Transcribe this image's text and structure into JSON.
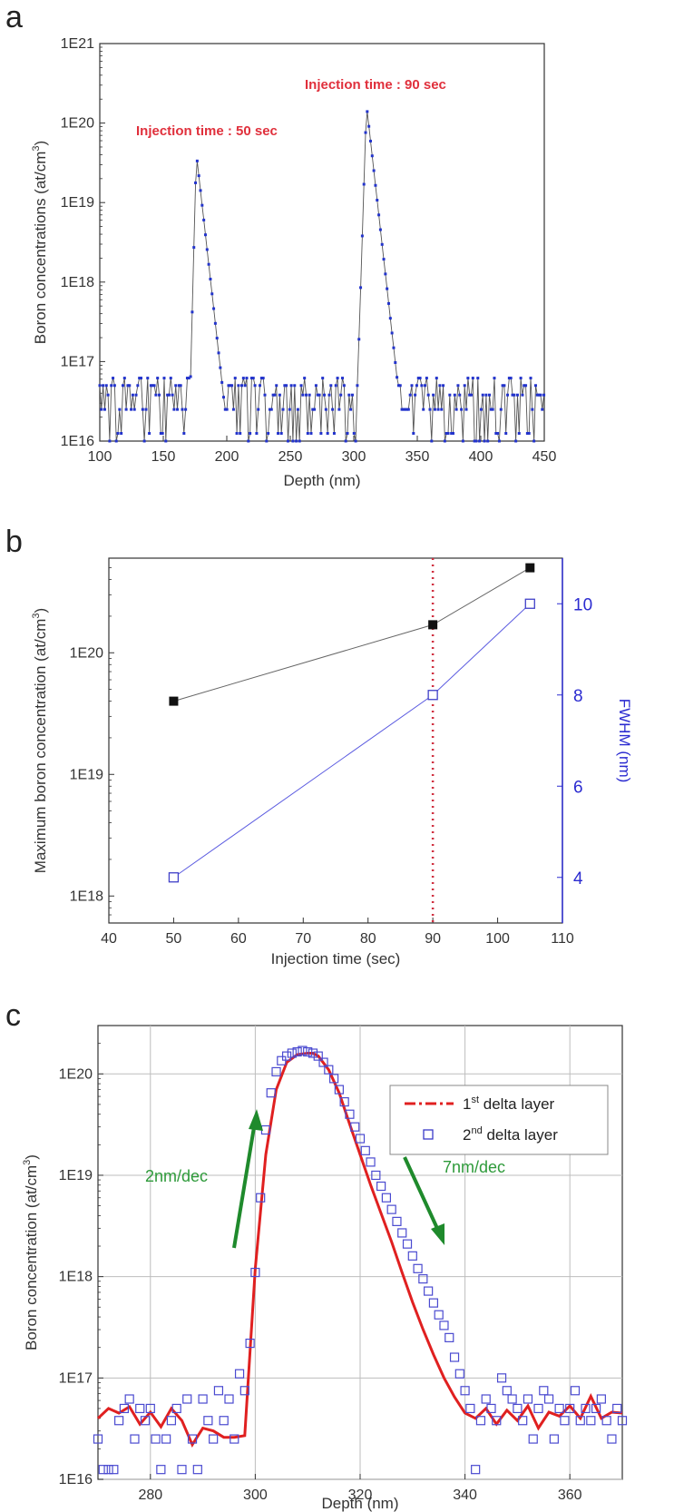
{
  "chart_data": [
    {
      "panel": "a",
      "type": "line",
      "xlabel": "Depth (nm)",
      "ylabel": "Boron concentrations (at/cm",
      "ylabel_sup": "3",
      "ylabel_tail": ")",
      "xlim": [
        100,
        450
      ],
      "ylim": [
        1e+16,
        1e+21
      ],
      "yscale": "log",
      "xticks": [
        100,
        150,
        200,
        250,
        300,
        350,
        400,
        450
      ],
      "yticks": [
        {
          "value": 1e+16,
          "label": "1E16"
        },
        {
          "value": 1e+17,
          "label": "1E17"
        },
        {
          "value": 1e+18,
          "label": "1E18"
        },
        {
          "value": 1e+19,
          "label": "1E19"
        },
        {
          "value": 1e+20,
          "label": "1E20"
        },
        {
          "value": 1e+21,
          "label": "1E21"
        }
      ],
      "annotations": [
        {
          "text": "Injection time : 50 sec",
          "x": 176,
          "y": 1e+20
        },
        {
          "text": "Injection time : 90 sec",
          "x": 310,
          "y": 2.9e+20
        }
      ],
      "series": [
        {
          "peaks": [
            {
              "center": 176,
              "peak": 4.2e+19,
              "rise_nm_per_dec": 1.6,
              "fall_nm_per_dec": 7.0
            },
            {
              "center": 310,
              "peak": 1.7e+20,
              "rise_nm_per_dec": 2.0,
              "fall_nm_per_dec": 7.0
            }
          ],
          "background": [
            2.5e+16,
            3.8e+16,
            5e+16,
            6.2e+16,
            1.25e+16
          ],
          "step_nm": 1.3
        }
      ]
    },
    {
      "panel": "b",
      "type": "scatter",
      "xlabel": "Injection time (sec)",
      "ylabel": "Maximum boron concentration (at/cm",
      "ylabel_sup": "3",
      "ylabel_tail": ")",
      "y2label": "FWHM (nm)",
      "xlim": [
        40,
        110
      ],
      "ylim": [
        6e+17,
        6e+20
      ],
      "yscale": "log",
      "y2lim": [
        3,
        11
      ],
      "xticks": [
        40,
        50,
        60,
        70,
        80,
        90,
        100,
        110
      ],
      "yticks": [
        {
          "value": 1e+18,
          "label": "1E18"
        },
        {
          "value": 1e+19,
          "label": "1E19"
        },
        {
          "value": 1e+20,
          "label": "1E20"
        }
      ],
      "y2ticks": [
        4,
        6,
        8,
        10
      ],
      "vline": 90,
      "series": [
        {
          "axis": "left",
          "marker": "filled-square",
          "x": [
            50,
            90,
            105
          ],
          "y": [
            4e+19,
            1.7e+20,
            5e+20
          ]
        },
        {
          "axis": "right",
          "marker": "open-square",
          "x": [
            50,
            90,
            105
          ],
          "y": [
            4,
            8,
            10
          ]
        }
      ]
    },
    {
      "panel": "c",
      "type": "line",
      "xlabel": "Depth (nm)",
      "ylabel": "Boron concentration (at/cm",
      "ylabel_sup": "3",
      "ylabel_tail": ")",
      "xlim": [
        270,
        370
      ],
      "ylim": [
        1e+16,
        3e+20
      ],
      "yscale": "log",
      "grid": true,
      "xticks": [
        280,
        300,
        320,
        340,
        360
      ],
      "yticks": [
        {
          "value": 1e+16,
          "label": "1E16"
        },
        {
          "value": 1e+17,
          "label": "1E17"
        },
        {
          "value": 1e+18,
          "label": "1E18"
        },
        {
          "value": 1e+19,
          "label": "1E19"
        },
        {
          "value": 1e+20,
          "label": "1E20"
        }
      ],
      "annotations": [
        {
          "text": "2nm/dec",
          "x": 288,
          "y": 3e+18
        },
        {
          "text": "7nm/dec",
          "x": 346,
          "y": 2.6e+18
        }
      ],
      "legend": {
        "position": "top-right",
        "entries": [
          {
            "label_a": "1",
            "sup": "st",
            "label_b": " delta layer",
            "style": "red-dash-dot-line"
          },
          {
            "label_a": "2",
            "sup": "nd",
            "label_b": " delta layer",
            "style": "blue-open-square"
          }
        ]
      },
      "series": [
        {
          "name": "1st delta layer",
          "x": [
            270,
            272,
            274,
            276,
            278,
            280,
            282,
            284,
            286,
            288,
            290,
            292,
            294,
            296,
            298,
            300,
            302,
            304,
            306,
            308,
            310,
            311,
            312,
            314,
            316,
            318,
            320,
            322,
            324,
            326,
            328,
            330,
            332,
            334,
            336,
            338,
            340,
            342,
            344,
            346,
            348,
            350,
            352,
            354,
            356,
            358,
            360,
            362,
            364,
            366,
            368,
            370
          ],
          "y": [
            4e+16,
            5e+16,
            4.5e+16,
            5.2e+16,
            3.5e+16,
            4.6e+16,
            3.3e+16,
            5e+16,
            3.8e+16,
            2.2e+16,
            3.2e+16,
            3e+16,
            2.6e+16,
            2.6e+16,
            2.7e+16,
            1.2e+18,
            1.6e+19,
            7e+19,
            1.3e+20,
            1.55e+20,
            1.6e+20,
            1.6e+20,
            1.5e+20,
            1.1e+20,
            6.5e+19,
            3.2e+19,
            1.6e+19,
            8e+18,
            4.2e+18,
            2.2e+18,
            1.1e+18,
            5.6e+17,
            3e+17,
            1.7e+17,
            1e+17,
            6.5e+16,
            4.5e+16,
            4e+16,
            5e+16,
            3.5e+16,
            4.8e+16,
            3.8e+16,
            5.3e+16,
            3.2e+16,
            4.6e+16,
            4.2e+16,
            5.3e+16,
            4e+16,
            6.6e+16,
            4e+16,
            4.6e+16,
            4.5e+16
          ]
        },
        {
          "name": "2nd delta layer",
          "x": [
            270,
            271,
            272,
            273,
            274,
            275,
            276,
            277,
            278,
            279,
            280,
            281,
            282,
            283,
            284,
            285,
            286,
            287,
            288,
            289,
            290,
            291,
            292,
            293,
            294,
            295,
            296,
            297,
            298,
            299,
            300,
            301,
            302,
            303,
            304,
            305,
            306,
            307,
            308,
            309,
            310,
            311,
            312,
            313,
            314,
            315,
            316,
            317,
            318,
            319,
            320,
            321,
            322,
            323,
            324,
            325,
            326,
            327,
            328,
            329,
            330,
            331,
            332,
            333,
            334,
            335,
            336,
            337,
            338,
            339,
            340,
            341,
            342,
            343,
            344,
            345,
            346,
            347,
            348,
            349,
            350,
            351,
            352,
            353,
            354,
            355,
            356,
            357,
            358,
            359,
            360,
            361,
            362,
            363,
            364,
            365,
            366,
            367,
            368,
            369,
            370
          ],
          "y": [
            2.5e+16,
            1.25e+16,
            1.25e+16,
            1.25e+16,
            3.8e+16,
            5e+16,
            6.2e+16,
            2.5e+16,
            5e+16,
            3.8e+16,
            5e+16,
            2.5e+16,
            1.25e+16,
            2.5e+16,
            3.8e+16,
            5e+16,
            1.25e+16,
            6.2e+16,
            2.5e+16,
            1.25e+16,
            6.2e+16,
            3.8e+16,
            2.5e+16,
            7.5e+16,
            3.8e+16,
            6.2e+16,
            2.5e+16,
            1.1e+17,
            7.5e+16,
            2.2e+17,
            1.1e+18,
            6e+18,
            2.8e+19,
            6.5e+19,
            1.05e+20,
            1.35e+20,
            1.5e+20,
            1.6e+20,
            1.65e+20,
            1.7e+20,
            1.65e+20,
            1.6e+20,
            1.5e+20,
            1.3e+20,
            1.1e+20,
            9e+19,
            7e+19,
            5.3e+19,
            4e+19,
            3e+19,
            2.3e+19,
            1.75e+19,
            1.35e+19,
            1e+19,
            7.8e+18,
            6e+18,
            4.6e+18,
            3.5e+18,
            2.7e+18,
            2.1e+18,
            1.6e+18,
            1.2e+18,
            9.5e+17,
            7.2e+17,
            5.5e+17,
            4.2e+17,
            3.3e+17,
            2.5e+17,
            1.6e+17,
            1.1e+17,
            7.5e+16,
            5e+16,
            1.25e+16,
            3.8e+16,
            6.2e+16,
            5e+16,
            3.8e+16,
            1e+17,
            7.5e+16,
            6.2e+16,
            5e+16,
            3.8e+16,
            6.2e+16,
            2.5e+16,
            5e+16,
            7.5e+16,
            6.2e+16,
            2.5e+16,
            5e+16,
            3.8e+16,
            5e+16,
            7.5e+16,
            3.8e+16,
            5e+16,
            3.8e+16,
            5e+16,
            6.2e+16,
            3.8e+16,
            2.5e+16,
            5e+16,
            3.8e+16
          ]
        }
      ]
    }
  ]
}
